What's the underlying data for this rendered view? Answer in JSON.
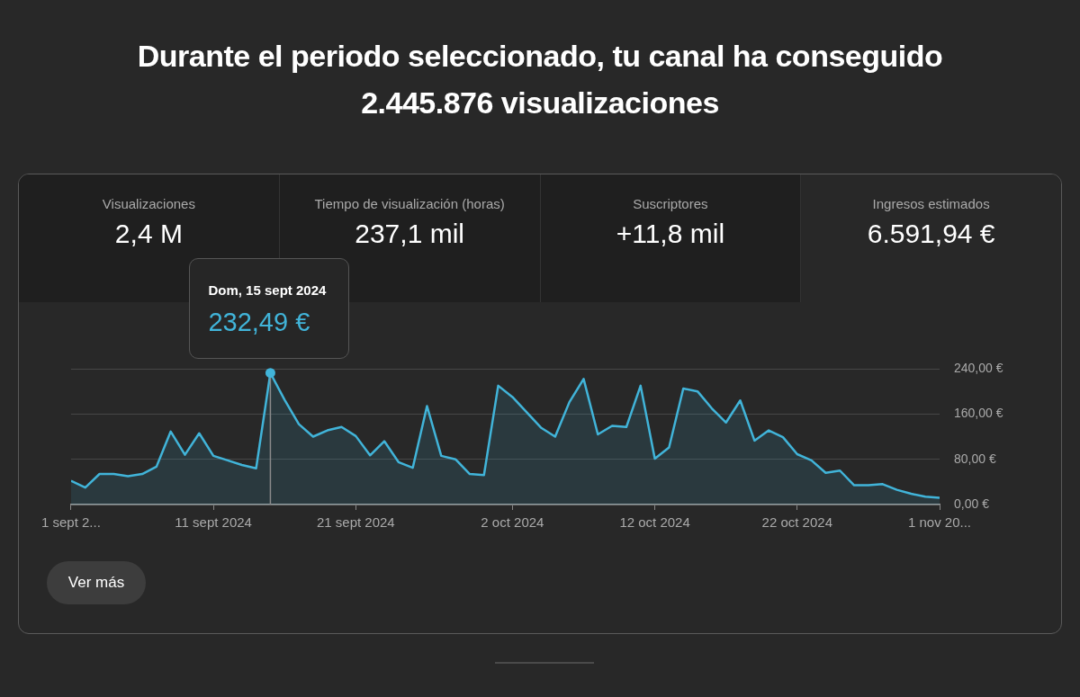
{
  "chart_data": [
    {
      "type": "other",
      "title": "Durante el periodo seleccionado, tu canal ha conseguido 2.445.876 visualizaciones",
      "annotations": [
        "Visualizaciones",
        "2,4 M",
        "Tiempo de visualización (horas)",
        "237,1 mil",
        "Suscriptores",
        "+11,8 mil",
        "Ingresos estimados",
        "6.591,94 €"
      ]
    },
    {
      "type": "area",
      "color": "#41b4d9",
      "x": [
        "2024-09-01",
        "2024-09-02",
        "2024-09-03",
        "2024-09-04",
        "2024-09-05",
        "2024-09-06",
        "2024-09-07",
        "2024-09-08",
        "2024-09-09",
        "2024-09-10",
        "2024-09-11",
        "2024-09-12",
        "2024-09-13",
        "2024-09-14",
        "2024-09-15",
        "2024-09-16",
        "2024-09-17",
        "2024-09-18",
        "2024-09-19",
        "2024-09-20",
        "2024-09-21",
        "2024-09-22",
        "2024-09-23",
        "2024-09-24",
        "2024-09-25",
        "2024-09-26",
        "2024-09-27",
        "2024-09-28",
        "2024-09-29",
        "2024-09-30",
        "2024-10-01",
        "2024-10-02",
        "2024-10-03",
        "2024-10-04",
        "2024-10-05",
        "2024-10-06",
        "2024-10-07",
        "2024-10-08",
        "2024-10-09",
        "2024-10-10",
        "2024-10-11",
        "2024-10-12",
        "2024-10-13",
        "2024-10-14",
        "2024-10-15",
        "2024-10-16",
        "2024-10-17",
        "2024-10-18",
        "2024-10-19",
        "2024-10-20",
        "2024-10-21",
        "2024-10-22",
        "2024-10-23",
        "2024-10-24",
        "2024-10-25",
        "2024-10-26",
        "2024-10-27",
        "2024-10-28",
        "2024-10-29",
        "2024-10-30",
        "2024-10-31",
        "2024-11-01"
      ],
      "values": [
        42,
        30,
        54,
        54,
        50,
        54,
        67,
        129,
        88,
        126,
        86,
        78,
        70,
        64,
        232.49,
        185,
        142,
        120,
        131,
        137,
        121,
        87,
        112,
        75,
        65,
        174,
        86,
        80,
        54,
        52,
        210,
        190,
        163,
        136,
        120,
        181,
        222,
        124,
        139,
        137,
        210,
        81,
        101,
        205,
        200,
        170,
        145,
        184,
        113,
        131,
        119,
        89,
        78,
        56,
        60,
        34,
        34,
        36,
        26,
        19,
        14,
        12
      ],
      "xlim": [
        "2024-09-01",
        "2024-11-01"
      ],
      "xticks": [
        {
          "value": "2024-09-01",
          "label": "1 sept 2..."
        },
        {
          "value": "2024-09-11",
          "label": "11 sept 2024"
        },
        {
          "value": "2024-09-21",
          "label": "21 sept 2024"
        },
        {
          "value": "2024-10-02",
          "label": "2 oct 2024"
        },
        {
          "value": "2024-10-12",
          "label": "12 oct 2024"
        },
        {
          "value": "2024-10-22",
          "label": "22 oct 2024"
        },
        {
          "value": "2024-11-01",
          "label": "1 nov 20..."
        }
      ],
      "ylim": [
        0,
        240
      ],
      "yticks": [
        {
          "value": 0,
          "label": "0,00 €"
        },
        {
          "value": 80,
          "label": "80,00 €"
        },
        {
          "value": 160,
          "label": "160,00 €"
        },
        {
          "value": 240,
          "label": "240,00 €"
        }
      ],
      "grid": "y",
      "legend": false,
      "ref_lines": [
        {
          "axis": "x",
          "value": "2024-09-15",
          "color": "#8a8a8a"
        }
      ],
      "annotations": [
        "Dom, 15 sept 2024",
        "232,49 €",
        "Ver más"
      ]
    }
  ]
}
